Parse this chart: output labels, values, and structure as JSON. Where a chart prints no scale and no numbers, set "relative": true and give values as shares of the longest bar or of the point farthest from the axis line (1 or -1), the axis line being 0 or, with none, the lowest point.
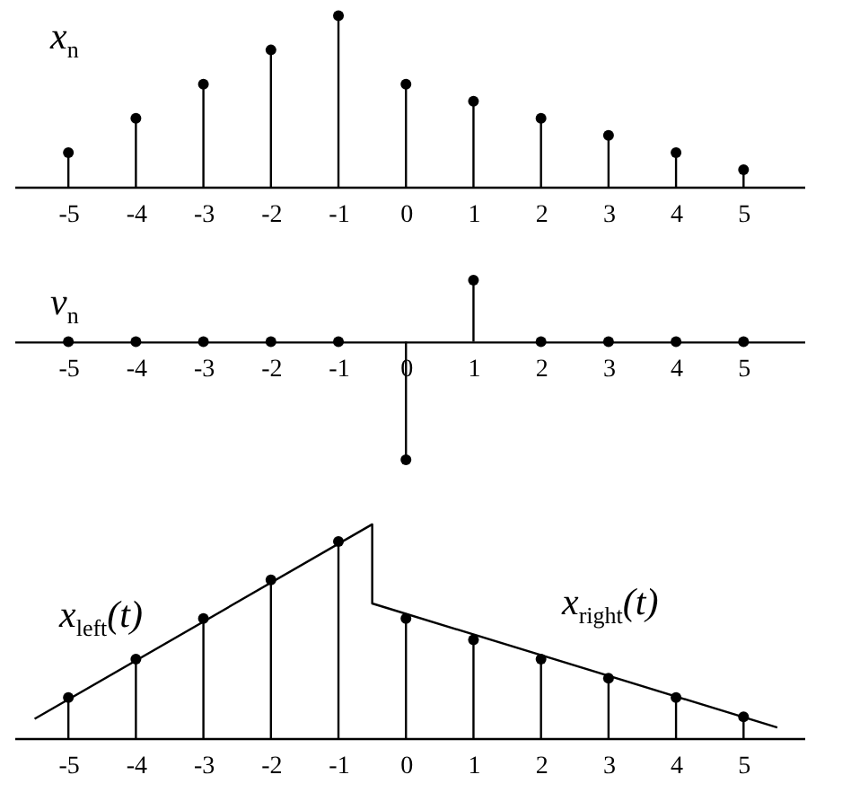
{
  "chart_data": [
    {
      "type": "lollipop",
      "title": "x$_{n}$",
      "relative": true,
      "marker": "circle",
      "xlim": [
        -5.8,
        5.9
      ],
      "xticks": [
        -5,
        -4,
        -3,
        -2,
        -1,
        0,
        1,
        2,
        3,
        4,
        5
      ],
      "series": [
        {
          "color": "#000000",
          "x": [
            -5,
            -4,
            -3,
            -2,
            -1,
            0,
            1,
            2,
            3,
            4,
            5
          ],
          "values": [
            0.2,
            0.4,
            0.6,
            0.8,
            1,
            0.6,
            0.5,
            0.4,
            0.3,
            0.2,
            0.1
          ]
        }
      ]
    },
    {
      "type": "lollipop",
      "title": "v$_{n}$",
      "relative": true,
      "marker": "circle",
      "xlim": [
        -5.8,
        5.9
      ],
      "xticks": [
        -5,
        -4,
        -3,
        -2,
        -1,
        0,
        1,
        2,
        3,
        4,
        5
      ],
      "series": [
        {
          "color": "#000000",
          "x": [
            -5,
            -4,
            -3,
            -2,
            -1,
            0,
            1,
            2,
            3,
            4,
            5
          ],
          "values": [
            0,
            0,
            0,
            0,
            0,
            -1,
            0.52,
            0,
            0,
            0,
            0
          ]
        }
      ]
    },
    {
      "type": "lollipop",
      "relative": true,
      "xlim": [
        -5.8,
        5.9
      ],
      "xticks": [
        -5,
        -4,
        -3,
        -2,
        -1,
        0,
        1,
        2,
        3,
        4,
        5
      ],
      "annotations": [
        "x$_{left}$(t)",
        "x$_{right}$(t)"
      ],
      "series": [
        {
          "type": "line",
          "color": "#000000",
          "x": [
            -5.5,
            -0.5,
            -0.5,
            5.5
          ],
          "values": [
            0.09,
            1,
            0.63,
            0.05
          ]
        },
        {
          "marker": "circle",
          "color": "#000000",
          "x": [
            -5,
            -4,
            -3,
            -2,
            -1,
            0,
            1,
            2,
            3,
            4,
            5
          ],
          "values": [
            0.19,
            0.37,
            0.56,
            0.74,
            0.92,
            0.56,
            0.46,
            0.37,
            0.28,
            0.19,
            0.1
          ]
        }
      ]
    }
  ]
}
